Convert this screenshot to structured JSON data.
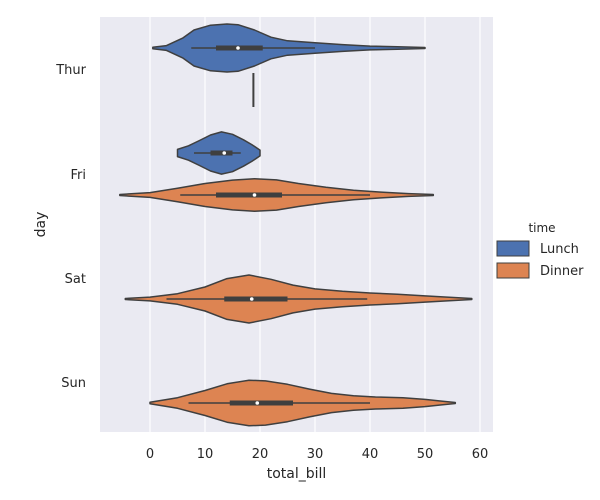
{
  "chart_data": {
    "type": "violin",
    "orientation": "horizontal",
    "xlabel": "total_bill",
    "ylabel": "day",
    "xlim": [
      -9,
      62
    ],
    "xticks": [
      0,
      10,
      20,
      30,
      40,
      50,
      60
    ],
    "categories": [
      "Thur",
      "Fri",
      "Sat",
      "Sun"
    ],
    "grid": true,
    "legend": {
      "title": "time",
      "placement": "right",
      "entries": [
        {
          "name": "Lunch",
          "color": "#4c72b0"
        },
        {
          "name": "Dinner",
          "color": "#dd8452"
        }
      ]
    },
    "series": [
      {
        "name": "Lunch",
        "color": "#4c72b0",
        "violins": [
          {
            "category": "Thur",
            "min": 0.5,
            "max": 50,
            "whisker_low": 7.5,
            "q1": 12,
            "median": 16,
            "q3": 20.5,
            "whisker_high": 30,
            "profile": [
              [
                0.5,
                0.03
              ],
              [
                3,
                0.1
              ],
              [
                6,
                0.42
              ],
              [
                8,
                0.75
              ],
              [
                11,
                0.95
              ],
              [
                14,
                1.0
              ],
              [
                16,
                0.97
              ],
              [
                19,
                0.75
              ],
              [
                22,
                0.45
              ],
              [
                25,
                0.3
              ],
              [
                30,
                0.22
              ],
              [
                35,
                0.14
              ],
              [
                40,
                0.08
              ],
              [
                45,
                0.05
              ],
              [
                50,
                0.02
              ]
            ]
          },
          {
            "category": "Fri",
            "min": 5,
            "max": 20,
            "whisker_low": 8,
            "q1": 11,
            "median": 13.5,
            "q3": 15,
            "whisker_high": 16.5,
            "profile": [
              [
                5,
                0.15
              ],
              [
                7,
                0.3
              ],
              [
                9,
                0.52
              ],
              [
                11,
                0.75
              ],
              [
                13,
                0.88
              ],
              [
                15,
                0.78
              ],
              [
                17,
                0.55
              ],
              [
                18.5,
                0.35
              ],
              [
                20,
                0.12
              ]
            ]
          }
        ]
      },
      {
        "name": "Dinner",
        "color": "#dd8452",
        "violins": [
          {
            "category": "Thur",
            "value": 18.8
          },
          {
            "category": "Fri",
            "min": -5.5,
            "max": 51.5,
            "whisker_low": 5.5,
            "q1": 12,
            "median": 19,
            "q3": 24,
            "whisker_high": 40,
            "profile": [
              [
                -5.5,
                0.02
              ],
              [
                0,
                0.1
              ],
              [
                5,
                0.28
              ],
              [
                10,
                0.48
              ],
              [
                15,
                0.62
              ],
              [
                19,
                0.68
              ],
              [
                23,
                0.63
              ],
              [
                27,
                0.48
              ],
              [
                32,
                0.32
              ],
              [
                37,
                0.2
              ],
              [
                42,
                0.12
              ],
              [
                47,
                0.06
              ],
              [
                51.5,
                0.02
              ]
            ]
          },
          {
            "category": "Sat",
            "min": -4.5,
            "max": 58.5,
            "whisker_low": 3,
            "q1": 13.5,
            "median": 18.5,
            "q3": 25,
            "whisker_high": 39.5,
            "profile": [
              [
                -4.5,
                0.02
              ],
              [
                0,
                0.08
              ],
              [
                5,
                0.22
              ],
              [
                10,
                0.5
              ],
              [
                14,
                0.85
              ],
              [
                18,
                1.0
              ],
              [
                22,
                0.82
              ],
              [
                26,
                0.58
              ],
              [
                30,
                0.42
              ],
              [
                35,
                0.32
              ],
              [
                40,
                0.25
              ],
              [
                45,
                0.2
              ],
              [
                50,
                0.13
              ],
              [
                54,
                0.08
              ],
              [
                58.5,
                0.02
              ]
            ]
          },
          {
            "category": "Sun",
            "min": 0,
            "max": 55.5,
            "whisker_low": 7,
            "q1": 14.5,
            "median": 19.5,
            "q3": 26,
            "whisker_high": 40,
            "profile": [
              [
                0,
                0.03
              ],
              [
                5,
                0.22
              ],
              [
                10,
                0.52
              ],
              [
                14,
                0.8
              ],
              [
                18,
                0.95
              ],
              [
                21,
                0.92
              ],
              [
                25,
                0.78
              ],
              [
                29,
                0.58
              ],
              [
                33,
                0.4
              ],
              [
                37,
                0.3
              ],
              [
                41,
                0.25
              ],
              [
                46,
                0.22
              ],
              [
                50,
                0.15
              ],
              [
                53,
                0.08
              ],
              [
                55.5,
                0.02
              ]
            ]
          }
        ]
      }
    ]
  }
}
